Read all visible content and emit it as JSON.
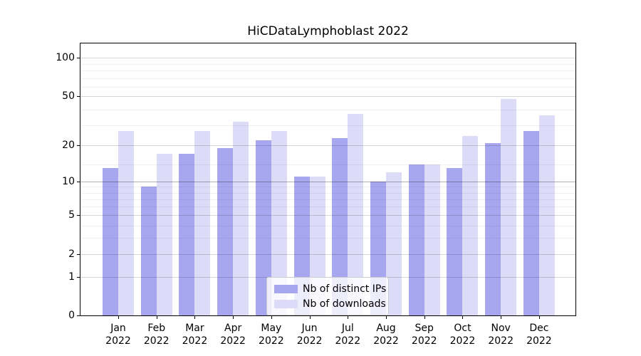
{
  "chart_data": {
    "type": "bar",
    "title": "HiCDataLymphoblast 2022",
    "categories": [
      "Jan",
      "Feb",
      "Mar",
      "Apr",
      "May",
      "Jun",
      "Jul",
      "Aug",
      "Sep",
      "Oct",
      "Nov",
      "Dec"
    ],
    "xtick_year": "2022",
    "series": [
      {
        "key": "distinct-ips",
        "name": "Nb of distinct IPs",
        "color": "#a7a7f0",
        "values": [
          13,
          9,
          17,
          19,
          22,
          11,
          23,
          10,
          14,
          13,
          21,
          26
        ]
      },
      {
        "key": "downloads",
        "name": "Nb of downloads",
        "color": "#dcdcf8",
        "values": [
          26,
          17,
          26,
          31,
          26,
          11,
          36,
          12,
          14,
          24,
          47,
          35
        ]
      }
    ],
    "yscale": "log1p",
    "yticks": [
      0,
      1,
      2,
      5,
      10,
      20,
      50,
      100
    ],
    "yticks_minor": [
      3,
      4,
      6,
      7,
      8,
      9,
      14,
      29,
      39,
      59,
      69,
      79,
      89
    ],
    "strong_gridline_at": 10,
    "ylim": [
      0,
      130
    ],
    "grid": "horizontal",
    "legend_position": "inside-bottom-center",
    "colors": {
      "background": "#ffffff",
      "axis": "#000000",
      "text": "#000000",
      "grid_major": "rgba(0,0,0,0.16)",
      "grid_strong": "rgba(0,0,0,0.30)",
      "grid_minor": "rgba(0,0,0,0.055)"
    }
  }
}
